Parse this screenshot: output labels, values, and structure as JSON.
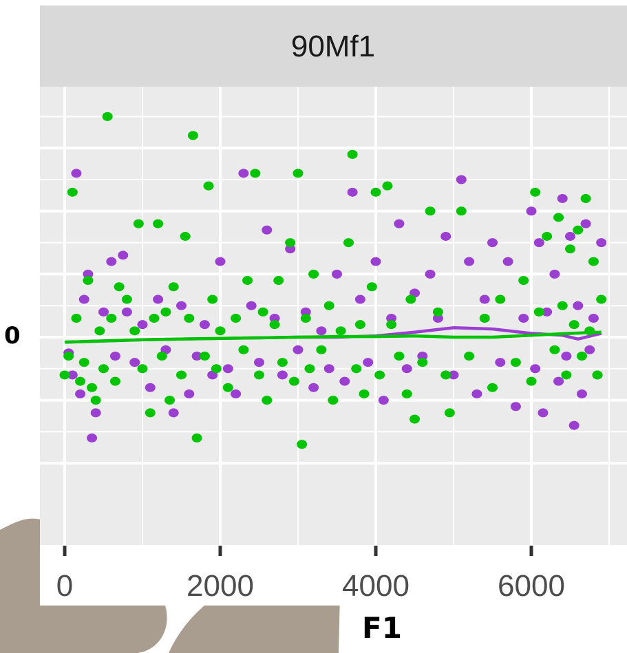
{
  "chart_data": {
    "type": "scatter",
    "title": "",
    "facet_label": "90Mf1",
    "xlabel": "F1",
    "ylabel": "",
    "xlim": [
      -300,
      7000
    ],
    "ylim": [
      -2.0,
      4.0
    ],
    "x_ticks": [
      0,
      2000,
      4000,
      6000
    ],
    "x_tick_labels": [
      "0",
      "2000",
      "4000",
      "6000"
    ],
    "y_ticks": [
      0
    ],
    "y_tick_labels": [
      "0"
    ],
    "grid": true,
    "legend": "none",
    "series": [
      {
        "color": "#9b3fd1",
        "points": [
          [
            50,
            -0.25
          ],
          [
            100,
            -0.6
          ],
          [
            150,
            2.6
          ],
          [
            200,
            -0.9
          ],
          [
            250,
            0.6
          ],
          [
            300,
            1.0
          ],
          [
            350,
            -1.6
          ],
          [
            400,
            -1.2
          ],
          [
            500,
            0.4
          ],
          [
            600,
            1.2
          ],
          [
            650,
            -0.3
          ],
          [
            750,
            1.3
          ],
          [
            800,
            0.4
          ],
          [
            900,
            -0.4
          ],
          [
            1000,
            0.2
          ],
          [
            1100,
            -0.8
          ],
          [
            1200,
            0.6
          ],
          [
            1300,
            -0.2
          ],
          [
            1400,
            -1.2
          ],
          [
            1500,
            0.5
          ],
          [
            1600,
            -0.9
          ],
          [
            1700,
            -0.3
          ],
          [
            1800,
            0.2
          ],
          [
            1900,
            -0.6
          ],
          [
            2000,
            1.2
          ],
          [
            2100,
            -0.5
          ],
          [
            2200,
            -0.9
          ],
          [
            2300,
            2.6
          ],
          [
            2400,
            0.5
          ],
          [
            2500,
            -0.4
          ],
          [
            2600,
            1.7
          ],
          [
            2700,
            0.3
          ],
          [
            2800,
            -0.6
          ],
          [
            2900,
            1.4
          ],
          [
            3000,
            -0.2
          ],
          [
            3100,
            0.4
          ],
          [
            3200,
            -0.8
          ],
          [
            3300,
            0.1
          ],
          [
            3400,
            -0.5
          ],
          [
            3500,
            1.0
          ],
          [
            3600,
            -0.7
          ],
          [
            3700,
            2.3
          ],
          [
            3800,
            0.6
          ],
          [
            3900,
            -0.4
          ],
          [
            4000,
            1.2
          ],
          [
            4100,
            -1.0
          ],
          [
            4200,
            0.3
          ],
          [
            4300,
            1.8
          ],
          [
            4400,
            -0.5
          ],
          [
            4500,
            0.7
          ],
          [
            4600,
            -0.3
          ],
          [
            4700,
            1.0
          ],
          [
            4800,
            0.3
          ],
          [
            4900,
            1.6
          ],
          [
            5000,
            -0.6
          ],
          [
            5100,
            2.5
          ],
          [
            5200,
            1.2
          ],
          [
            5300,
            -0.9
          ],
          [
            5400,
            0.6
          ],
          [
            5500,
            1.5
          ],
          [
            5600,
            -0.4
          ],
          [
            5700,
            1.2
          ],
          [
            5800,
            -1.1
          ],
          [
            5900,
            0.3
          ],
          [
            6000,
            2.0
          ],
          [
            6050,
            -0.5
          ],
          [
            6100,
            1.5
          ],
          [
            6150,
            -1.2
          ],
          [
            6200,
            0.4
          ],
          [
            6300,
            1.0
          ],
          [
            6350,
            -0.7
          ],
          [
            6400,
            2.2
          ],
          [
            6450,
            -0.3
          ],
          [
            6500,
            1.6
          ],
          [
            6550,
            -1.4
          ],
          [
            6600,
            0.5
          ],
          [
            6650,
            -0.9
          ],
          [
            6700,
            1.8
          ],
          [
            6750,
            -0.2
          ],
          [
            6800,
            0.3
          ],
          [
            6850,
            -0.6
          ],
          [
            6900,
            1.5
          ]
        ]
      },
      {
        "color": "#00c400",
        "points": [
          [
            0,
            -0.6
          ],
          [
            50,
            -0.3
          ],
          [
            100,
            2.3
          ],
          [
            150,
            0.3
          ],
          [
            200,
            -0.7
          ],
          [
            250,
            -0.4
          ],
          [
            300,
            0.9
          ],
          [
            350,
            -0.8
          ],
          [
            400,
            -1.0
          ],
          [
            450,
            0.1
          ],
          [
            500,
            -0.5
          ],
          [
            550,
            3.5
          ],
          [
            600,
            0.3
          ],
          [
            650,
            -0.7
          ],
          [
            700,
            0.8
          ],
          [
            800,
            0.6
          ],
          [
            900,
            0.1
          ],
          [
            950,
            1.8
          ],
          [
            1000,
            -0.5
          ],
          [
            1100,
            -1.2
          ],
          [
            1150,
            0.3
          ],
          [
            1200,
            1.8
          ],
          [
            1250,
            -0.3
          ],
          [
            1300,
            0.4
          ],
          [
            1350,
            -1.0
          ],
          [
            1400,
            0.8
          ],
          [
            1500,
            -0.6
          ],
          [
            1550,
            1.6
          ],
          [
            1600,
            0.3
          ],
          [
            1650,
            3.2
          ],
          [
            1700,
            -1.6
          ],
          [
            1800,
            -0.3
          ],
          [
            1850,
            2.4
          ],
          [
            1900,
            0.6
          ],
          [
            1950,
            -0.5
          ],
          [
            2000,
            0.1
          ],
          [
            2100,
            -0.8
          ],
          [
            2200,
            0.3
          ],
          [
            2300,
            -0.2
          ],
          [
            2350,
            0.9
          ],
          [
            2450,
            2.6
          ],
          [
            2500,
            -0.6
          ],
          [
            2550,
            0.4
          ],
          [
            2600,
            -1.0
          ],
          [
            2700,
            0.2
          ],
          [
            2750,
            0.9
          ],
          [
            2800,
            -0.4
          ],
          [
            2900,
            1.5
          ],
          [
            2950,
            -0.7
          ],
          [
            3000,
            2.6
          ],
          [
            3050,
            -1.7
          ],
          [
            3100,
            0.3
          ],
          [
            3150,
            -0.5
          ],
          [
            3200,
            1.0
          ],
          [
            3300,
            -0.2
          ],
          [
            3400,
            0.5
          ],
          [
            3450,
            -1.0
          ],
          [
            3550,
            0.1
          ],
          [
            3650,
            1.5
          ],
          [
            3700,
            2.9
          ],
          [
            3750,
            -0.5
          ],
          [
            3800,
            0.2
          ],
          [
            3850,
            -0.9
          ],
          [
            3950,
            0.8
          ],
          [
            4000,
            2.3
          ],
          [
            4050,
            -0.6
          ],
          [
            4150,
            2.4
          ],
          [
            4200,
            0.2
          ],
          [
            4300,
            -0.3
          ],
          [
            4400,
            -0.9
          ],
          [
            4450,
            0.6
          ],
          [
            4500,
            -1.3
          ],
          [
            4600,
            -0.4
          ],
          [
            4700,
            2.0
          ],
          [
            4800,
            0.4
          ],
          [
            4900,
            -0.6
          ],
          [
            4950,
            -1.2
          ],
          [
            5100,
            2.0
          ],
          [
            5200,
            -0.3
          ],
          [
            5400,
            0.3
          ],
          [
            5500,
            -0.8
          ],
          [
            5600,
            0.6
          ],
          [
            5800,
            -0.4
          ],
          [
            5900,
            0.9
          ],
          [
            6000,
            -0.7
          ],
          [
            6050,
            2.3
          ],
          [
            6100,
            0.4
          ],
          [
            6200,
            1.6
          ],
          [
            6300,
            -0.2
          ],
          [
            6350,
            1.9
          ],
          [
            6400,
            0.5
          ],
          [
            6450,
            -0.6
          ],
          [
            6500,
            1.4
          ],
          [
            6550,
            0.2
          ],
          [
            6600,
            1.7
          ],
          [
            6650,
            -0.3
          ],
          [
            6700,
            2.2
          ],
          [
            6750,
            0.1
          ],
          [
            6800,
            1.2
          ],
          [
            6850,
            -0.6
          ],
          [
            6900,
            0.6
          ]
        ]
      }
    ],
    "smooth_lines": [
      {
        "color": "#9b3fd1",
        "points": [
          [
            0,
            -0.08
          ],
          [
            1000,
            -0.04
          ],
          [
            2000,
            -0.02
          ],
          [
            3000,
            0.0
          ],
          [
            3500,
            0.0
          ],
          [
            4000,
            0.02
          ],
          [
            4500,
            0.08
          ],
          [
            5000,
            0.15
          ],
          [
            5500,
            0.13
          ],
          [
            6000,
            0.06
          ],
          [
            6400,
            0.03
          ],
          [
            6600,
            -0.03
          ],
          [
            6900,
            0.06
          ]
        ]
      },
      {
        "color": "#00c400",
        "points": [
          [
            0,
            -0.08
          ],
          [
            1000,
            -0.04
          ],
          [
            2000,
            -0.02
          ],
          [
            3000,
            0.0
          ],
          [
            3500,
            0.01
          ],
          [
            4000,
            0.01
          ],
          [
            4500,
            0.02
          ],
          [
            5000,
            0.0
          ],
          [
            5500,
            0.0
          ],
          [
            6000,
            0.03
          ],
          [
            6500,
            0.06
          ],
          [
            6900,
            0.08
          ]
        ]
      }
    ]
  }
}
